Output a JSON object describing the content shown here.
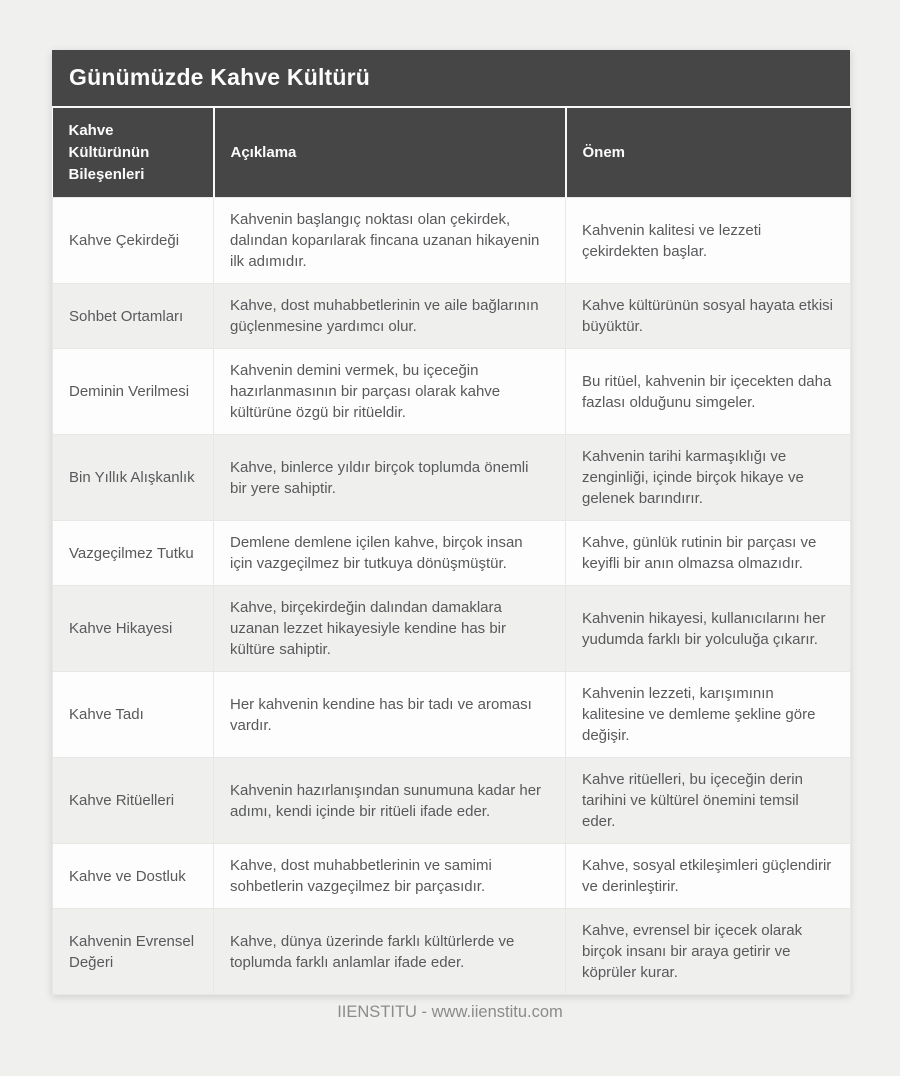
{
  "page": {
    "title": "Günümüzde Kahve Kültürü",
    "footer_text": "IIENSTITU - www.iienstitu.com"
  },
  "colors": {
    "header_bg": "#464646",
    "header_text": "#fbfbfb",
    "body_text": "#58595b",
    "stripe_bg": "#efefee",
    "row_bg": "#fdfdfd",
    "page_bg": "#f0f0ef",
    "border": "#e7e7e6",
    "footer_text": "#8b8b8b"
  },
  "table": {
    "columns": [
      "Kahve Kültürünün Bileşenleri",
      "Açıklama",
      "Önem"
    ],
    "rows": [
      {
        "component": "Kahve Çekirdeği",
        "description": "Kahvenin başlangıç noktası olan çekirdek, dalından koparılarak fincana uzanan hikayenin ilk adımıdır.",
        "importance": "Kahvenin kalitesi ve lezzeti çekirdekten başlar."
      },
      {
        "component": "Sohbet Ortamları",
        "description": "Kahve, dost muhabbetlerinin ve aile bağlarının güçlenmesine yardımcı olur.",
        "importance": "Kahve kültürünün sosyal hayata etkisi büyüktür."
      },
      {
        "component": "Deminin Verilmesi",
        "description": "Kahvenin demini vermek, bu içeceğin hazırlanmasının bir parçası olarak kahve kültürüne özgü bir ritüeldir.",
        "importance": "Bu ritüel, kahvenin bir içecekten daha fazlası olduğunu simgeler."
      },
      {
        "component": "Bin Yıllık Alışkanlık",
        "description": "Kahve, binlerce yıldır birçok toplumda önemli bir yere sahiptir.",
        "importance": "Kahvenin tarihi karmaşıklığı ve zenginliği, içinde birçok hikaye ve gelenek barındırır."
      },
      {
        "component": "Vazgeçilmez Tutku",
        "description": "Demlene demlene içilen kahve, birçok insan için vazgeçilmez bir tutkuya dönüşmüştür.",
        "importance": "Kahve, günlük rutinin bir parçası ve keyifli bir anın olmazsa olmazıdır."
      },
      {
        "component": "Kahve Hikayesi",
        "description": "Kahve, birçekirdeğin dalından damaklara uzanan lezzet hikayesiyle kendine has bir kültüre sahiptir.",
        "importance": "Kahvenin hikayesi, kullanıcılarını her yudumda farklı bir yolculuğa çıkarır."
      },
      {
        "component": "Kahve Tadı",
        "description": "Her kahvenin kendine has bir tadı ve aroması vardır.",
        "importance": "Kahvenin lezzeti, karışımının kalitesine ve demleme şekline göre değişir."
      },
      {
        "component": "Kahve Ritüelleri",
        "description": "Kahvenin hazırlanışından sunumuna kadar her adımı, kendi içinde bir ritüeli ifade eder.",
        "importance": "Kahve ritüelleri, bu içeceğin derin tarihini ve kültürel önemini temsil eder."
      },
      {
        "component": "Kahve ve Dostluk",
        "description": "Kahve, dost muhabbetlerinin ve samimi sohbetlerin vazgeçilmez bir parçasıdır.",
        "importance": "Kahve, sosyal etkileşimleri güçlendirir ve derinleştirir."
      },
      {
        "component": "Kahvenin Evrensel Değeri",
        "description": "Kahve, dünya üzerinde farklı kültürlerde ve toplumda farklı anlamlar ifade eder.",
        "importance": "Kahve, evrensel bir içecek olarak birçok insanı bir araya getirir ve köprüler kurar."
      }
    ]
  }
}
